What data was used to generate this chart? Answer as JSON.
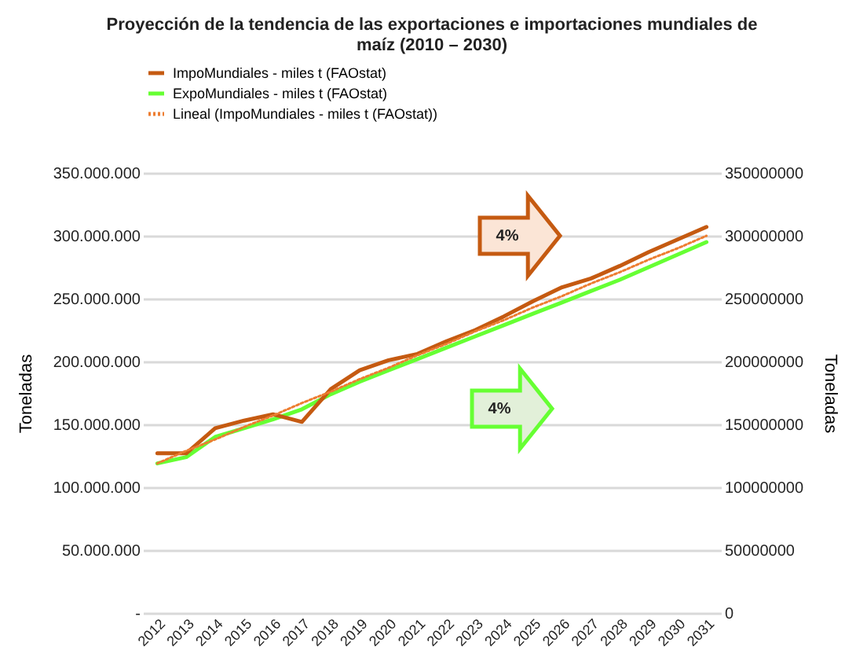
{
  "chart_data": {
    "type": "line",
    "title": "Proyección  de la tendencia de las exportaciones e importaciones mundiales de maíz (2010 – 2030)",
    "ylabel": "Toneladas",
    "y2label": "Toneladas",
    "categories": [
      "2012",
      "2013",
      "2014",
      "2015",
      "2016",
      "2017",
      "2018",
      "2019",
      "2020",
      "2021",
      "2022",
      "2023",
      "2024",
      "2025",
      "2026",
      "2027",
      "2028",
      "2029",
      "2030",
      "2031"
    ],
    "series": [
      {
        "name": "ImpoMundiales  - miles t (FAOstat)",
        "color": "#c55a11",
        "values": [
          127000000,
          127000000,
          147000000,
          153000000,
          158000000,
          152000000,
          178000000,
          193000000,
          201000000,
          206000000,
          216000000,
          225000000,
          236000000,
          248000000,
          259000000,
          266000000,
          276000000,
          287000000,
          297000000,
          307000000
        ]
      },
      {
        "name": "ExpoMundiales  - miles t (FAOstat)",
        "color": "#66ff33",
        "axis": "y2",
        "values": [
          119000000,
          124000000,
          140000000,
          147000000,
          154000000,
          162000000,
          174000000,
          184000000,
          193000000,
          202000000,
          211000000,
          220000000,
          229000000,
          238000000,
          247000000,
          256000000,
          265000000,
          275000000,
          285000000,
          295000000
        ]
      },
      {
        "name": "Lineal (ImpoMundiales  - miles t (FAOstat))",
        "color": "#ed7d31",
        "line_style": "dotted",
        "values": [
          119000000,
          129000000,
          138000000,
          148000000,
          157000000,
          167000000,
          176000000,
          186000000,
          195000000,
          205000000,
          214000000,
          224000000,
          233000000,
          243000000,
          252000000,
          262000000,
          271000000,
          281000000,
          290000000,
          300000000
        ]
      }
    ],
    "ylim": [
      0,
      350000000
    ],
    "yticks": [
      {
        "value": 0,
        "label": "-"
      },
      {
        "value": 50000000,
        "label": "50.000.000"
      },
      {
        "value": 100000000,
        "label": "100.000.000"
      },
      {
        "value": 150000000,
        "label": "150.000.000"
      },
      {
        "value": 200000000,
        "label": "200.000.000"
      },
      {
        "value": 250000000,
        "label": "250.000.000"
      },
      {
        "value": 300000000,
        "label": "300.000.000"
      },
      {
        "value": 350000000,
        "label": "350.000.000"
      }
    ],
    "y2lim": [
      0,
      350000000
    ],
    "y2ticks": [
      0,
      50000000,
      100000000,
      150000000,
      200000000,
      250000000,
      300000000,
      350000000
    ],
    "annotations": [
      "4%",
      "4%"
    ],
    "grid": "y",
    "legend": "top",
    "marker": "none",
    "line_style": "solid"
  }
}
